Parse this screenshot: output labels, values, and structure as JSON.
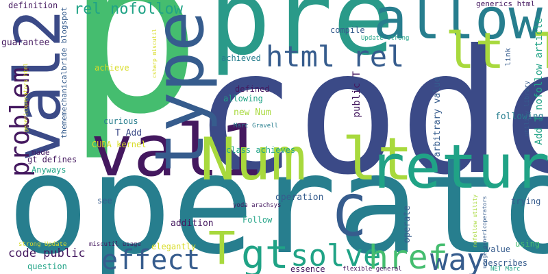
{
  "palette": {
    "navy": "#3b4a87",
    "purple": "#44185f",
    "teal": "#277e8e",
    "teal_light": "#2a9a89",
    "green": "#45bd6f",
    "lime": "#a8d93d",
    "yellow": "#d8dc27",
    "blue": "#365c8d",
    "sea": "#20a386"
  },
  "words": {
    "p": "p",
    "code": "code",
    "operator": "operator",
    "pre": "pre",
    "val2": "val2",
    "val1": "val1",
    "type": "type",
    "allow": "allow",
    "lt_t": "lt T",
    "num_lt": "Num lt",
    "return": "return",
    "html_rel": "html rel",
    "problem": "problem",
    "c": "C",
    "effect": "effect",
    "gt": "gt",
    "t_big": "T",
    "solve": "solve",
    "href": "href",
    "way": "way",
    "rel_nofollow": "rel nofollow",
    "code_public": "code public",
    "definition": "definition",
    "guarantee": "guarantee",
    "thememechanicalbride_blogspot": "thememechanicalbride blogspot",
    "genericoperators_html": "genericoperators html",
    "csharp_miscutil": "csharp miscutil",
    "achieve": "achieve",
    "achieved": "achieved",
    "defined": "defined",
    "allowing": "allowing",
    "new_num": "new Num",
    "curious": "curious",
    "t_add": "T Add",
    "cuda_kernel": "CUDA kernel",
    "made": "made",
    "gt_defines": "gt defines",
    "anyways": "Anyways",
    "class_achieves": "class achieves",
    "marc_gravell": "Marc Gravell",
    "public_t": "public T",
    "arbitrary_value": "arbitrary value",
    "following": "following",
    "add_t_nofollow_article": "Add T nofollow article",
    "utility_library": "utility library",
    "link": "link",
    "generics_html": "generics html",
    "compile": "compile",
    "update_strong": "Update strong",
    "operation": "operation",
    "yoda_arachsys": "yoda arachsys",
    "see": "see",
    "follow": "Follow",
    "addition": "addition",
    "trying": "trying",
    "strong_update": "strong Update",
    "miscutil_usage": "miscutil usage",
    "elegantly": "elegantly",
    "operate": "operate",
    "question": "question",
    "essence": "essence",
    "flexible_general": "flexible general",
    "net_marc": "NET Marc",
    "describes": "describes",
    "value": "value",
    "using": "using",
    "nofollow_utility": "nofollow utility",
    "usage_genericoperators": "usage genericoperators"
  }
}
